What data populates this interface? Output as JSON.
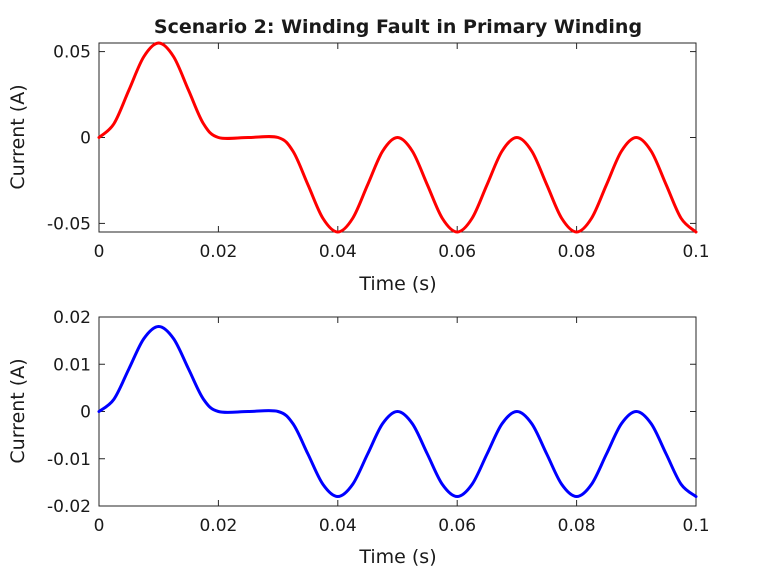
{
  "chart_data": [
    {
      "type": "line",
      "title": "Scenario 2: Winding Fault in Primary Winding",
      "xlabel": "Time (s)",
      "ylabel": "Current (A)",
      "xlim": [
        0,
        0.1
      ],
      "ylim": [
        -0.055,
        0.055
      ],
      "xticks": [
        0,
        0.02,
        0.04,
        0.06,
        0.08,
        0.1
      ],
      "xtick_labels": [
        "0",
        "0.02",
        "0.04",
        "0.06",
        "0.08",
        "0.1"
      ],
      "yticks": [
        -0.05,
        0,
        0.05
      ],
      "ytick_labels": [
        "-0.05",
        "0",
        "0.05"
      ],
      "grid": false,
      "series": [
        {
          "color": "#ff0000",
          "x": [
            0,
            0.0025,
            0.005,
            0.0075,
            0.01,
            0.0125,
            0.015,
            0.0175,
            0.02,
            0.025,
            0.03,
            0.0325,
            0.035,
            0.0375,
            0.04,
            0.0425,
            0.045,
            0.0475,
            0.05,
            0.0525,
            0.055,
            0.0575,
            0.06,
            0.0625,
            0.065,
            0.0675,
            0.07,
            0.0725,
            0.075,
            0.0775,
            0.08,
            0.0825,
            0.085,
            0.0875,
            0.09,
            0.0925,
            0.095,
            0.0975,
            0.1
          ],
          "y": [
            0,
            0.008,
            0.0275,
            0.047,
            0.055,
            0.047,
            0.0275,
            0.008,
            0,
            0,
            0,
            -0.008,
            -0.0275,
            -0.047,
            -0.055,
            -0.047,
            -0.0275,
            -0.008,
            0,
            -0.008,
            -0.0275,
            -0.047,
            -0.055,
            -0.047,
            -0.0275,
            -0.008,
            0,
            -0.008,
            -0.0275,
            -0.047,
            -0.055,
            -0.047,
            -0.0275,
            -0.008,
            0,
            -0.008,
            -0.0275,
            -0.047,
            -0.055
          ]
        }
      ]
    },
    {
      "type": "line",
      "title": "",
      "xlabel": "Time (s)",
      "ylabel": "Current (A)",
      "xlim": [
        0,
        0.1
      ],
      "ylim": [
        -0.02,
        0.02
      ],
      "xticks": [
        0,
        0.02,
        0.04,
        0.06,
        0.08,
        0.1
      ],
      "xtick_labels": [
        "0",
        "0.02",
        "0.04",
        "0.06",
        "0.08",
        "0.1"
      ],
      "yticks": [
        -0.02,
        -0.01,
        0,
        0.01,
        0.02
      ],
      "ytick_labels": [
        "-0.02",
        "-0.01",
        "0",
        "0.01",
        "0.02"
      ],
      "grid": false,
      "series": [
        {
          "color": "#0000ff",
          "x": [
            0,
            0.0025,
            0.005,
            0.0075,
            0.01,
            0.0125,
            0.015,
            0.0175,
            0.02,
            0.025,
            0.03,
            0.0325,
            0.035,
            0.0375,
            0.04,
            0.0425,
            0.045,
            0.0475,
            0.05,
            0.0525,
            0.055,
            0.0575,
            0.06,
            0.0625,
            0.065,
            0.0675,
            0.07,
            0.0725,
            0.075,
            0.0775,
            0.08,
            0.0825,
            0.085,
            0.0875,
            0.09,
            0.0925,
            0.095,
            0.0975,
            0.1
          ],
          "y": [
            0,
            0.0026,
            0.009,
            0.0154,
            0.018,
            0.0154,
            0.009,
            0.0026,
            0,
            0,
            0,
            -0.0026,
            -0.009,
            -0.0154,
            -0.018,
            -0.0154,
            -0.009,
            -0.0026,
            0,
            -0.0026,
            -0.009,
            -0.0154,
            -0.018,
            -0.0154,
            -0.009,
            -0.0026,
            0,
            -0.0026,
            -0.009,
            -0.0154,
            -0.018,
            -0.0154,
            -0.009,
            -0.0026,
            0,
            -0.0026,
            -0.009,
            -0.0154,
            -0.018
          ]
        }
      ]
    }
  ]
}
